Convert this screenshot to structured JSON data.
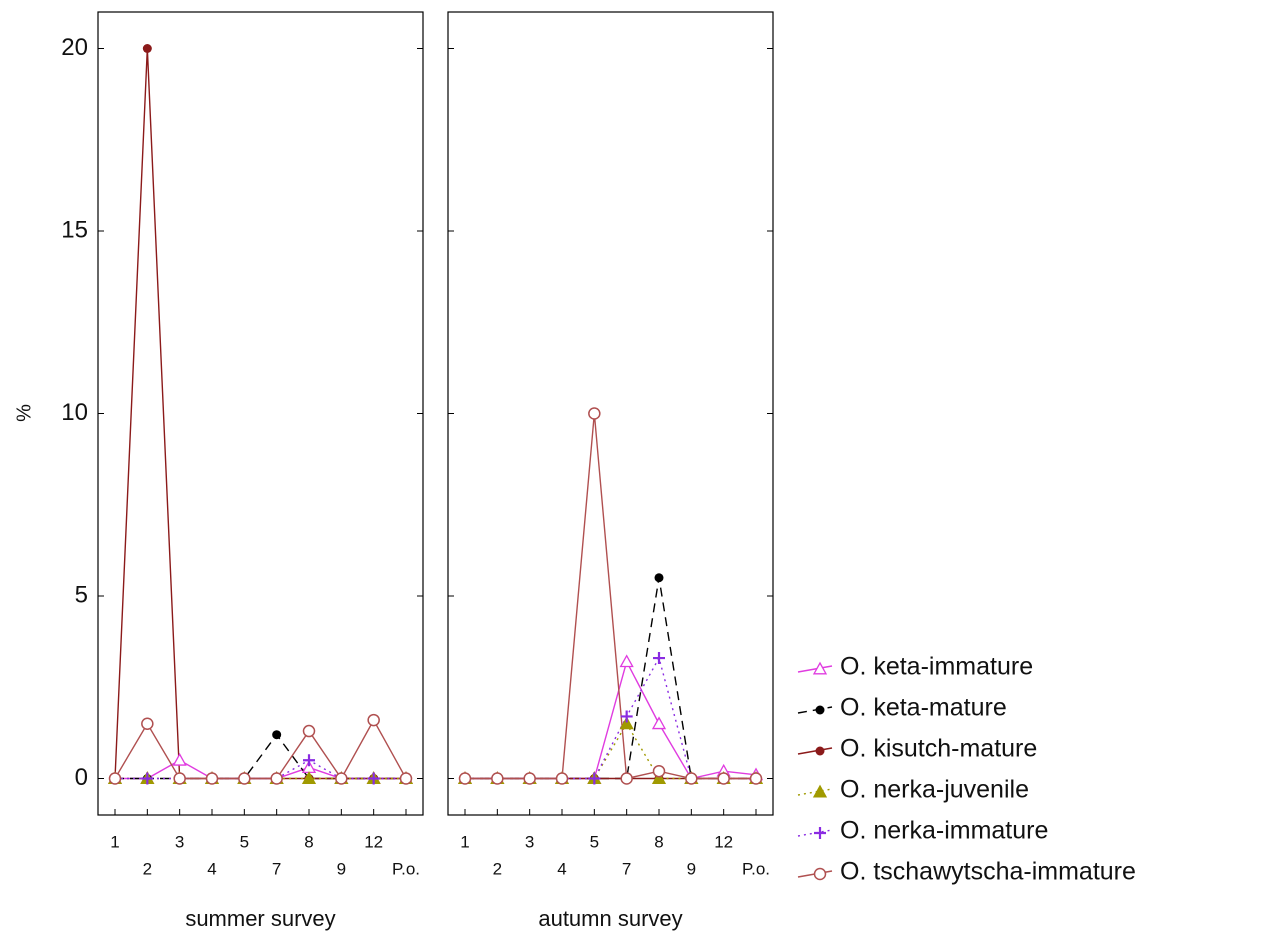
{
  "chart_data": [
    {
      "type": "line",
      "xlabel": "summer survey",
      "ylabel": "%",
      "categories": [
        "1",
        "2",
        "3",
        "4",
        "5",
        "7",
        "8",
        "9",
        "12",
        "P.o."
      ],
      "ylim": [
        -1,
        21
      ],
      "yticks": [
        0,
        5,
        10,
        15,
        20
      ],
      "legend": "right",
      "series": [
        {
          "name": "O. keta-immature",
          "color": "#e03ce0",
          "marker": "triangle-open",
          "dash": "solid",
          "values": [
            0,
            0,
            0.5,
            0,
            0,
            0,
            0.3,
            0,
            0,
            0
          ]
        },
        {
          "name": "O. keta-mature",
          "color": "#000000",
          "marker": "circle",
          "dash": "dashed",
          "values": [
            0,
            0,
            0,
            0,
            0,
            1.2,
            0,
            0,
            0,
            0
          ]
        },
        {
          "name": "O. kisutch-mature",
          "color": "#8b1a1a",
          "marker": "circle",
          "dash": "solid",
          "values": [
            0,
            20,
            0,
            0,
            0,
            0,
            0,
            0,
            0,
            0
          ]
        },
        {
          "name": "O. nerka-juvenile",
          "color": "#a09a00",
          "marker": "triangle",
          "dash": "dotted",
          "values": [
            0,
            0,
            0,
            0,
            0,
            0,
            0,
            0,
            0,
            0
          ]
        },
        {
          "name": "O. nerka-immature",
          "color": "#8a2be2",
          "marker": "plus",
          "dash": "dotted",
          "values": [
            0,
            0,
            0,
            0,
            0,
            0,
            0.5,
            0,
            0,
            0
          ]
        },
        {
          "name": "O. tschawytscha-immature",
          "color": "#b05050",
          "marker": "circle-open",
          "dash": "solid",
          "values": [
            0,
            1.5,
            0,
            0,
            0,
            0,
            1.3,
            0,
            1.6,
            0
          ]
        }
      ]
    },
    {
      "type": "line",
      "xlabel": "autumn survey",
      "categories": [
        "1",
        "2",
        "3",
        "4",
        "5",
        "7",
        "8",
        "9",
        "12",
        "P.o."
      ],
      "ylim": [
        -1,
        21
      ],
      "yticks": [
        0,
        5,
        10,
        15,
        20
      ],
      "series": [
        {
          "name": "O. keta-immature",
          "color": "#e03ce0",
          "marker": "triangle-open",
          "dash": "solid",
          "values": [
            0,
            0,
            0,
            0,
            0,
            3.2,
            1.5,
            0,
            0.2,
            0.1
          ]
        },
        {
          "name": "O. keta-mature",
          "color": "#000000",
          "marker": "circle",
          "dash": "dashed",
          "values": [
            0,
            0,
            0,
            0,
            0,
            0,
            5.5,
            0,
            0,
            0
          ]
        },
        {
          "name": "O. kisutch-mature",
          "color": "#8b1a1a",
          "marker": "circle",
          "dash": "solid",
          "values": [
            0,
            0,
            0,
            0,
            0,
            0,
            0,
            0,
            0,
            0
          ]
        },
        {
          "name": "O. nerka-juvenile",
          "color": "#a09a00",
          "marker": "triangle",
          "dash": "dotted",
          "values": [
            0,
            0,
            0,
            0,
            0,
            1.5,
            0,
            0,
            0,
            0
          ]
        },
        {
          "name": "O. nerka-immature",
          "color": "#8a2be2",
          "marker": "plus",
          "dash": "dotted",
          "values": [
            0,
            0,
            0,
            0,
            0,
            1.7,
            3.3,
            0,
            0,
            0
          ]
        },
        {
          "name": "O. tschawytscha-immature",
          "color": "#b05050",
          "marker": "circle-open",
          "dash": "solid",
          "values": [
            0,
            0,
            0,
            0,
            10,
            0,
            0.2,
            0,
            0,
            0
          ]
        }
      ]
    }
  ]
}
